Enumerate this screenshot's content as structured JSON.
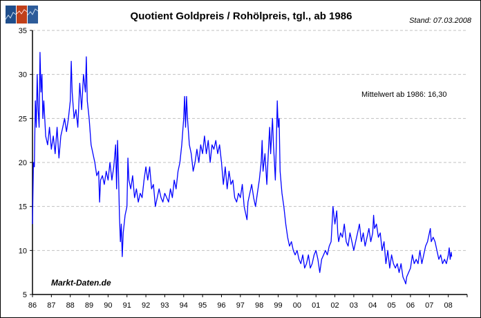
{
  "header": {
    "title": "Quotient Goldpreis / Rohölpreis, tgl., ab 1986",
    "date_label": "Stand: 07.03.2008",
    "brand": "Markt-Daten.de"
  },
  "annotations": {
    "mean_label": "Mittelwert ab 1986: 16,30"
  },
  "colors": {
    "series": "#0000FF",
    "grid": "#C0C0C0",
    "logo": [
      "#1F4E8C",
      "#C0401A",
      "#2E5C9A"
    ]
  },
  "chart_data": {
    "type": "line",
    "title": "Quotient Goldpreis / Rohölpreis, tgl., ab 1986",
    "xlabel": "",
    "ylabel": "",
    "xlim": [
      1986,
      2009
    ],
    "ylim": [
      5,
      35
    ],
    "grid": "horizontal dashed",
    "x_ticks": [
      1986,
      1987,
      1988,
      1989,
      1990,
      1991,
      1992,
      1993,
      1994,
      1995,
      1996,
      1997,
      1998,
      1999,
      2000,
      2001,
      2002,
      2003,
      2004,
      2005,
      2006,
      2007,
      2008
    ],
    "x_tick_labels": [
      "86",
      "87",
      "88",
      "89",
      "90",
      "91",
      "92",
      "93",
      "94",
      "95",
      "96",
      "97",
      "98",
      "99",
      "00",
      "01",
      "02",
      "03",
      "04",
      "05",
      "06",
      "07",
      "08"
    ],
    "y_ticks": [
      5,
      10,
      15,
      20,
      25,
      30,
      35
    ],
    "y_tick_labels": [
      "5",
      "10",
      "15",
      "20",
      "25",
      "30",
      "35"
    ],
    "series": [
      {
        "x": [
          1986.0,
          1986.05,
          1986.1,
          1986.15,
          1986.2,
          1986.25,
          1986.3,
          1986.35,
          1986.4,
          1986.45,
          1986.5,
          1986.55,
          1986.6,
          1986.7,
          1986.8,
          1986.9,
          1987.0,
          1987.1,
          1987.2,
          1987.3,
          1987.4,
          1987.5,
          1987.6,
          1987.7,
          1987.8,
          1987.9,
          1988.0,
          1988.05,
          1988.1,
          1988.2,
          1988.3,
          1988.4,
          1988.5,
          1988.6,
          1988.7,
          1988.8,
          1988.85,
          1988.9,
          1989.0,
          1989.1,
          1989.2,
          1989.3,
          1989.4,
          1989.5,
          1989.55,
          1989.6,
          1989.7,
          1989.8,
          1989.9,
          1990.0,
          1990.1,
          1990.2,
          1990.3,
          1990.4,
          1990.45,
          1990.5,
          1990.55,
          1990.6,
          1990.65,
          1990.7,
          1990.75,
          1990.8,
          1990.9,
          1991.0,
          1991.05,
          1991.1,
          1991.2,
          1991.3,
          1991.4,
          1991.5,
          1991.6,
          1991.7,
          1991.8,
          1991.9,
          1992.0,
          1992.1,
          1992.2,
          1992.3,
          1992.4,
          1992.5,
          1992.6,
          1992.7,
          1992.8,
          1992.9,
          1993.0,
          1993.1,
          1993.2,
          1993.3,
          1993.4,
          1993.5,
          1993.6,
          1993.7,
          1993.8,
          1993.9,
          1994.0,
          1994.05,
          1994.1,
          1994.15,
          1994.2,
          1994.3,
          1994.4,
          1994.5,
          1994.6,
          1994.7,
          1994.8,
          1994.9,
          1995.0,
          1995.1,
          1995.2,
          1995.3,
          1995.4,
          1995.5,
          1995.6,
          1995.7,
          1995.8,
          1995.9,
          1996.0,
          1996.1,
          1996.2,
          1996.3,
          1996.4,
          1996.5,
          1996.6,
          1996.7,
          1996.8,
          1996.9,
          1997.0,
          1997.1,
          1997.2,
          1997.3,
          1997.35,
          1997.4,
          1997.5,
          1997.6,
          1997.7,
          1997.8,
          1997.9,
          1998.0,
          1998.1,
          1998.15,
          1998.2,
          1998.3,
          1998.4,
          1998.5,
          1998.55,
          1998.6,
          1998.7,
          1998.75,
          1998.8,
          1998.85,
          1998.9,
          1998.95,
          1999.0,
          1999.05,
          1999.1,
          1999.2,
          1999.3,
          1999.4,
          1999.5,
          1999.6,
          1999.7,
          1999.8,
          1999.9,
          2000.0,
          2000.1,
          2000.2,
          2000.3,
          2000.4,
          2000.5,
          2000.6,
          2000.7,
          2000.8,
          2000.9,
          2001.0,
          2001.1,
          2001.2,
          2001.3,
          2001.4,
          2001.5,
          2001.6,
          2001.7,
          2001.8,
          2001.85,
          2001.9,
          2002.0,
          2002.1,
          2002.15,
          2002.2,
          2002.3,
          2002.4,
          2002.5,
          2002.6,
          2002.7,
          2002.8,
          2002.9,
          2003.0,
          2003.1,
          2003.2,
          2003.3,
          2003.4,
          2003.5,
          2003.6,
          2003.7,
          2003.8,
          2003.9,
          2004.0,
          2004.05,
          2004.1,
          2004.2,
          2004.3,
          2004.4,
          2004.5,
          2004.6,
          2004.7,
          2004.8,
          2004.9,
          2005.0,
          2005.1,
          2005.2,
          2005.3,
          2005.4,
          2005.5,
          2005.6,
          2005.7,
          2005.75,
          2005.8,
          2005.9,
          2006.0,
          2006.1,
          2006.2,
          2006.3,
          2006.4,
          2006.5,
          2006.6,
          2006.7,
          2006.8,
          2006.9,
          2007.0,
          2007.05,
          2007.1,
          2007.2,
          2007.3,
          2007.4,
          2007.5,
          2007.6,
          2007.7,
          2007.8,
          2007.9,
          2008.0,
          2008.05,
          2008.1,
          2008.15,
          2008.18
        ],
        "y": [
          13,
          20,
          19.5,
          27,
          24,
          30,
          26,
          24,
          32.5,
          28,
          30,
          25,
          27,
          23,
          22,
          24,
          21.5,
          23,
          21,
          24,
          20.5,
          23,
          24,
          25,
          23.5,
          25,
          27,
          31.5,
          28,
          25,
          26,
          24,
          29,
          26,
          30,
          28,
          32,
          27,
          25,
          22,
          21,
          20,
          18.5,
          19,
          15.5,
          18,
          18.5,
          17.5,
          19,
          18,
          20,
          18,
          19.5,
          22,
          17,
          22.5,
          19,
          14,
          11,
          13,
          9.3,
          12,
          14,
          15,
          20.5,
          18,
          17,
          18.5,
          16,
          17,
          15.5,
          16.5,
          16,
          18,
          19.5,
          18,
          19.5,
          17,
          17.5,
          15,
          16,
          17,
          16,
          15.5,
          16.5,
          16,
          15.5,
          17,
          16,
          18,
          17,
          19,
          20,
          22,
          25,
          27.5,
          24,
          27.5,
          25,
          22,
          21,
          19,
          20,
          21.5,
          20,
          22,
          21,
          23,
          21,
          22.5,
          20,
          22,
          21.5,
          22.5,
          21,
          22,
          20,
          17.5,
          19.5,
          17,
          19,
          17.5,
          18,
          16,
          15.5,
          16.5,
          16,
          17.5,
          15,
          14,
          13.5,
          15.5,
          16.5,
          17.5,
          16,
          15,
          16.5,
          18,
          20,
          22.5,
          19,
          21,
          17.5,
          22,
          24,
          21,
          25,
          22,
          20,
          18,
          22,
          27,
          24,
          25,
          19,
          16.5,
          15,
          13,
          11.5,
          10.5,
          11,
          10,
          9.5,
          10,
          9,
          8.5,
          9.5,
          8,
          8.5,
          9.5,
          8,
          8.5,
          9.5,
          10,
          9,
          7.5,
          9,
          9.5,
          10,
          9.5,
          10.5,
          11,
          13,
          15,
          13,
          14.5,
          12,
          11,
          12,
          11.5,
          13,
          11,
          10.5,
          12,
          11,
          10,
          11,
          12,
          13,
          11,
          12,
          10.5,
          11.5,
          12.5,
          11,
          12,
          14,
          12.5,
          13,
          11.5,
          12,
          10,
          11,
          8.5,
          10,
          8,
          9.5,
          8.5,
          8,
          8.5,
          7.5,
          8.5,
          7,
          6.5,
          6.2,
          7,
          7.5,
          8,
          9.5,
          8.5,
          9,
          8.5,
          10,
          8.5,
          9.5,
          10.5,
          11,
          12,
          12.5,
          11,
          11.5,
          11,
          10,
          9,
          9.5,
          8.5,
          9,
          8.5,
          9.5,
          10.3,
          9,
          9.8,
          9.3
        ]
      }
    ],
    "annotations": [
      "Mittelwert ab 1986: 16,30",
      "Stand: 07.03.2008",
      "Markt-Daten.de"
    ]
  }
}
